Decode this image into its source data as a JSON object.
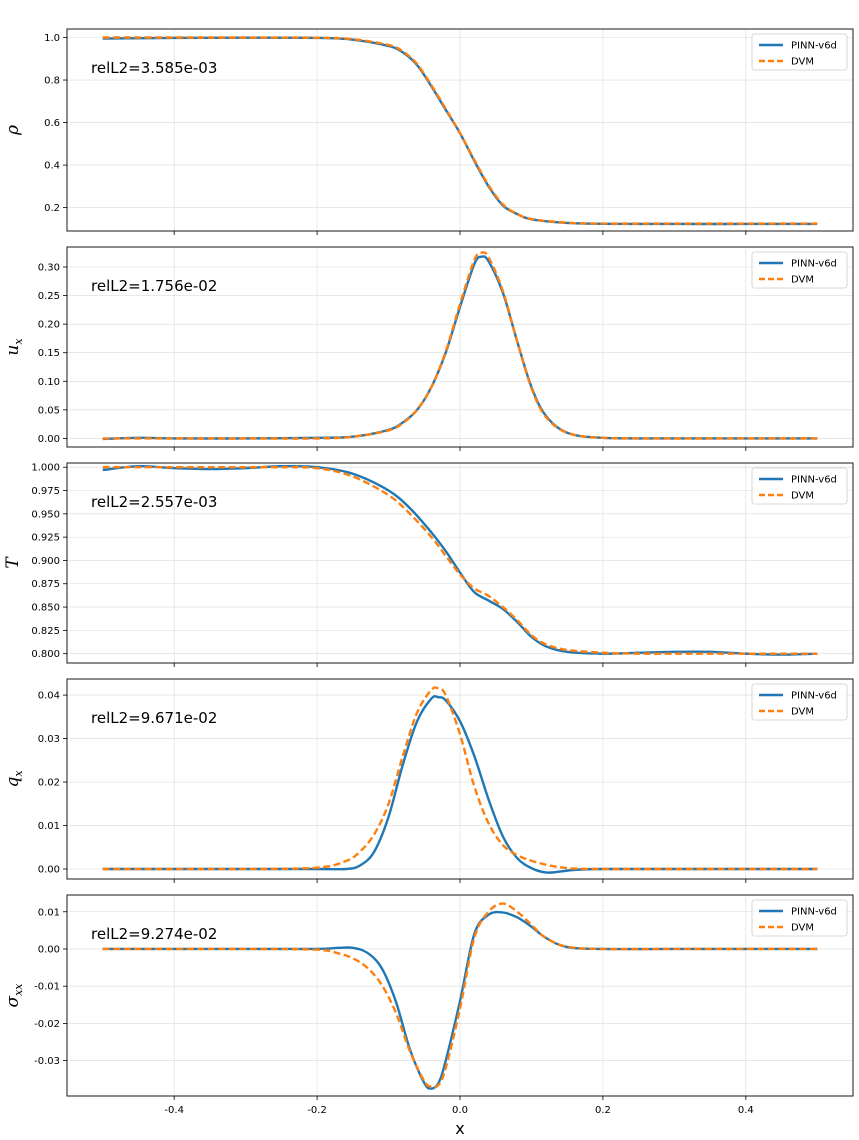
{
  "chart_data": [
    {
      "type": "line",
      "ylabel": "ρ",
      "ylabel_main": "ρ",
      "ylabel_sub": "",
      "annotation": "relL2=3.585e-03",
      "xlim": [
        -0.55,
        0.55
      ],
      "ylim": [
        0.09,
        1.04
      ],
      "yticks": [
        0.2,
        0.4,
        0.6,
        0.8,
        1.0
      ],
      "ytick_labels": [
        "0.2",
        "0.4",
        "0.6",
        "0.8",
        "1.0"
      ],
      "xticks": [
        -0.4,
        -0.2,
        0.0,
        0.2,
        0.4
      ],
      "grid": true,
      "legend_position": "top-right",
      "series": [
        {
          "name": "PINN-v6d",
          "color": "#1f77b4",
          "dash": "solid",
          "x": [
            -0.5,
            -0.4,
            -0.3,
            -0.2,
            -0.15,
            -0.1,
            -0.08,
            -0.06,
            -0.04,
            -0.02,
            0.0,
            0.02,
            0.04,
            0.06,
            0.08,
            0.1,
            0.15,
            0.2,
            0.3,
            0.4,
            0.5
          ],
          "y": [
            0.995,
            0.998,
            0.999,
            0.998,
            0.99,
            0.96,
            0.93,
            0.87,
            0.77,
            0.66,
            0.55,
            0.42,
            0.3,
            0.21,
            0.17,
            0.145,
            0.128,
            0.124,
            0.123,
            0.123,
            0.123
          ]
        },
        {
          "name": "DVM",
          "color": "#ff7f0e",
          "dash": "dashed",
          "x": [
            -0.5,
            -0.4,
            -0.3,
            -0.2,
            -0.15,
            -0.1,
            -0.08,
            -0.06,
            -0.04,
            -0.02,
            0.0,
            0.02,
            0.04,
            0.06,
            0.08,
            0.1,
            0.15,
            0.2,
            0.3,
            0.4,
            0.5
          ],
          "y": [
            1.0,
            1.0,
            1.0,
            0.999,
            0.992,
            0.965,
            0.935,
            0.875,
            0.775,
            0.665,
            0.55,
            0.425,
            0.305,
            0.215,
            0.17,
            0.146,
            0.129,
            0.125,
            0.125,
            0.125,
            0.125
          ]
        }
      ]
    },
    {
      "type": "line",
      "ylabel": "u_x",
      "ylabel_main": "u",
      "ylabel_sub": "x",
      "annotation": "relL2=1.756e-02",
      "xlim": [
        -0.55,
        0.55
      ],
      "ylim": [
        -0.015,
        0.335
      ],
      "yticks": [
        0.0,
        0.05,
        0.1,
        0.15,
        0.2,
        0.25,
        0.3
      ],
      "ytick_labels": [
        "0.00",
        "0.05",
        "0.10",
        "0.15",
        "0.20",
        "0.25",
        "0.30"
      ],
      "xticks": [
        -0.4,
        -0.2,
        0.0,
        0.2,
        0.4
      ],
      "grid": true,
      "legend_position": "top-right",
      "series": [
        {
          "name": "PINN-v6d",
          "color": "#1f77b4",
          "dash": "solid",
          "x": [
            -0.5,
            -0.45,
            -0.4,
            -0.3,
            -0.2,
            -0.15,
            -0.1,
            -0.08,
            -0.06,
            -0.04,
            -0.02,
            0.0,
            0.02,
            0.03,
            0.04,
            0.06,
            0.08,
            0.1,
            0.12,
            0.15,
            0.2,
            0.3,
            0.4,
            0.5
          ],
          "y": [
            -0.001,
            0.001,
            0.0,
            0.0,
            0.001,
            0.003,
            0.015,
            0.028,
            0.05,
            0.09,
            0.15,
            0.23,
            0.305,
            0.318,
            0.31,
            0.255,
            0.17,
            0.09,
            0.04,
            0.01,
            0.001,
            0.0,
            0.0,
            0.0
          ]
        },
        {
          "name": "DVM",
          "color": "#ff7f0e",
          "dash": "dashed",
          "x": [
            -0.5,
            -0.45,
            -0.4,
            -0.3,
            -0.2,
            -0.15,
            -0.1,
            -0.08,
            -0.06,
            -0.04,
            -0.02,
            0.0,
            0.02,
            0.03,
            0.04,
            0.06,
            0.08,
            0.1,
            0.12,
            0.15,
            0.2,
            0.3,
            0.4,
            0.5
          ],
          "y": [
            0.0,
            0.0,
            0.0,
            0.0,
            0.0,
            0.003,
            0.014,
            0.027,
            0.05,
            0.09,
            0.152,
            0.235,
            0.312,
            0.325,
            0.317,
            0.258,
            0.17,
            0.088,
            0.038,
            0.01,
            0.001,
            0.0,
            0.0,
            0.0
          ]
        }
      ]
    },
    {
      "type": "line",
      "ylabel": "T",
      "ylabel_main": "T",
      "ylabel_sub": "",
      "annotation": "relL2=2.557e-03",
      "xlim": [
        -0.55,
        0.55
      ],
      "ylim": [
        0.79,
        1.0045
      ],
      "yticks": [
        0.8,
        0.825,
        0.85,
        0.875,
        0.9,
        0.925,
        0.95,
        0.975,
        1.0
      ],
      "ytick_labels": [
        "0.800",
        "0.825",
        "0.850",
        "0.875",
        "0.900",
        "0.925",
        "0.950",
        "0.975",
        "1.000"
      ],
      "xticks": [
        -0.4,
        -0.2,
        0.0,
        0.2,
        0.4
      ],
      "grid": true,
      "legend_position": "top-right",
      "series": [
        {
          "name": "PINN-v6d",
          "color": "#1f77b4",
          "dash": "solid",
          "x": [
            -0.5,
            -0.45,
            -0.4,
            -0.35,
            -0.3,
            -0.25,
            -0.2,
            -0.15,
            -0.1,
            -0.07,
            -0.04,
            -0.02,
            0.0,
            0.02,
            0.04,
            0.06,
            0.08,
            0.1,
            0.12,
            0.15,
            0.2,
            0.25,
            0.3,
            0.35,
            0.4,
            0.45,
            0.5
          ],
          "y": [
            0.997,
            1.001,
            0.999,
            0.998,
            0.999,
            1.001,
            1.0,
            0.993,
            0.975,
            0.956,
            0.93,
            0.91,
            0.887,
            0.866,
            0.857,
            0.848,
            0.834,
            0.818,
            0.808,
            0.802,
            0.8,
            0.801,
            0.802,
            0.802,
            0.8,
            0.799,
            0.8
          ]
        },
        {
          "name": "DVM",
          "color": "#ff7f0e",
          "dash": "dashed",
          "x": [
            -0.5,
            -0.45,
            -0.4,
            -0.35,
            -0.3,
            -0.25,
            -0.2,
            -0.15,
            -0.1,
            -0.07,
            -0.04,
            -0.02,
            0.0,
            0.02,
            0.04,
            0.06,
            0.08,
            0.1,
            0.12,
            0.15,
            0.2,
            0.25,
            0.3,
            0.35,
            0.4,
            0.45,
            0.5
          ],
          "y": [
            1.0,
            1.0,
            1.0,
            1.0,
            1.0,
            1.0,
            0.999,
            0.99,
            0.97,
            0.95,
            0.925,
            0.905,
            0.885,
            0.87,
            0.862,
            0.85,
            0.836,
            0.82,
            0.81,
            0.804,
            0.801,
            0.8,
            0.8,
            0.8,
            0.8,
            0.8,
            0.8
          ]
        }
      ]
    },
    {
      "type": "line",
      "ylabel": "q_x",
      "ylabel_main": "q",
      "ylabel_sub": "x",
      "annotation": "relL2=9.671e-02",
      "xlim": [
        -0.55,
        0.55
      ],
      "ylim": [
        -0.0023,
        0.0437
      ],
      "yticks": [
        0.0,
        0.01,
        0.02,
        0.03,
        0.04
      ],
      "ytick_labels": [
        "0.00",
        "0.01",
        "0.02",
        "0.03",
        "0.04"
      ],
      "xticks": [
        -0.4,
        -0.2,
        0.0,
        0.2,
        0.4
      ],
      "grid": true,
      "legend_position": "top-right",
      "series": [
        {
          "name": "PINN-v6d",
          "color": "#1f77b4",
          "dash": "solid",
          "x": [
            -0.5,
            -0.3,
            -0.2,
            -0.16,
            -0.14,
            -0.12,
            -0.1,
            -0.08,
            -0.06,
            -0.04,
            -0.03,
            -0.02,
            0.0,
            0.02,
            0.04,
            0.06,
            0.08,
            0.1,
            0.12,
            0.14,
            0.16,
            0.2,
            0.3,
            0.5
          ],
          "y": [
            0.0,
            0.0,
            0.0,
            0.0,
            0.0008,
            0.004,
            0.012,
            0.024,
            0.034,
            0.0392,
            0.0395,
            0.0388,
            0.034,
            0.026,
            0.016,
            0.0075,
            0.0025,
            0.0002,
            -0.0008,
            -0.0006,
            -0.0002,
            0.0,
            0.0,
            0.0
          ]
        },
        {
          "name": "DVM",
          "color": "#ff7f0e",
          "dash": "dashed",
          "x": [
            -0.5,
            -0.3,
            -0.2,
            -0.16,
            -0.14,
            -0.12,
            -0.1,
            -0.08,
            -0.06,
            -0.04,
            -0.03,
            -0.02,
            0.0,
            0.02,
            0.04,
            0.06,
            0.08,
            0.1,
            0.12,
            0.14,
            0.16,
            0.2,
            0.3,
            0.5
          ],
          "y": [
            0.0,
            0.0,
            0.0003,
            0.0018,
            0.004,
            0.008,
            0.015,
            0.026,
            0.036,
            0.0412,
            0.0415,
            0.04,
            0.031,
            0.019,
            0.0105,
            0.0055,
            0.0032,
            0.0019,
            0.001,
            0.0004,
            0.0001,
            0.0,
            0.0,
            0.0
          ]
        }
      ]
    },
    {
      "type": "line",
      "ylabel": "σ_xx",
      "ylabel_main": "σ",
      "ylabel_sub": "xx",
      "annotation": "relL2=9.274e-02",
      "xlim": [
        -0.55,
        0.55
      ],
      "ylim": [
        -0.0395,
        0.0145
      ],
      "yticks": [
        -0.03,
        -0.02,
        -0.01,
        0.0,
        0.01
      ],
      "ytick_labels": [
        "-0.03",
        "-0.02",
        "-0.01",
        "0.00",
        "0.01"
      ],
      "xticks": [
        -0.4,
        -0.2,
        0.0,
        0.2,
        0.4
      ],
      "xtick_labels": [
        "-0.4",
        "-0.2",
        "0.0",
        "0.2",
        "0.4"
      ],
      "xlabel": "x",
      "grid": true,
      "legend_position": "top-right",
      "series": [
        {
          "name": "PINN-v6d",
          "color": "#1f77b4",
          "dash": "solid",
          "x": [
            -0.5,
            -0.3,
            -0.2,
            -0.17,
            -0.15,
            -0.13,
            -0.11,
            -0.09,
            -0.07,
            -0.05,
            -0.04,
            -0.03,
            -0.02,
            0.0,
            0.02,
            0.04,
            0.06,
            0.08,
            0.1,
            0.12,
            0.15,
            0.2,
            0.3,
            0.5
          ],
          "y": [
            0.0,
            0.0,
            0.0,
            0.0003,
            0.0003,
            -0.001,
            -0.005,
            -0.014,
            -0.027,
            -0.036,
            -0.0375,
            -0.036,
            -0.03,
            -0.014,
            0.004,
            0.0092,
            0.0098,
            0.0085,
            0.006,
            0.003,
            0.0005,
            0.0,
            0.0,
            0.0
          ]
        },
        {
          "name": "DVM",
          "color": "#ff7f0e",
          "dash": "dashed",
          "x": [
            -0.5,
            -0.3,
            -0.2,
            -0.17,
            -0.15,
            -0.13,
            -0.11,
            -0.09,
            -0.07,
            -0.05,
            -0.04,
            -0.03,
            -0.02,
            0.0,
            0.02,
            0.04,
            0.06,
            0.08,
            0.1,
            0.12,
            0.15,
            0.2,
            0.3,
            0.5
          ],
          "y": [
            0.0,
            0.0,
            -0.0002,
            -0.0012,
            -0.0025,
            -0.005,
            -0.0095,
            -0.017,
            -0.0275,
            -0.0355,
            -0.037,
            -0.0365,
            -0.032,
            -0.016,
            0.003,
            0.01,
            0.0122,
            0.01,
            0.0065,
            0.003,
            0.0006,
            0.0,
            0.0,
            0.0
          ]
        }
      ]
    }
  ]
}
